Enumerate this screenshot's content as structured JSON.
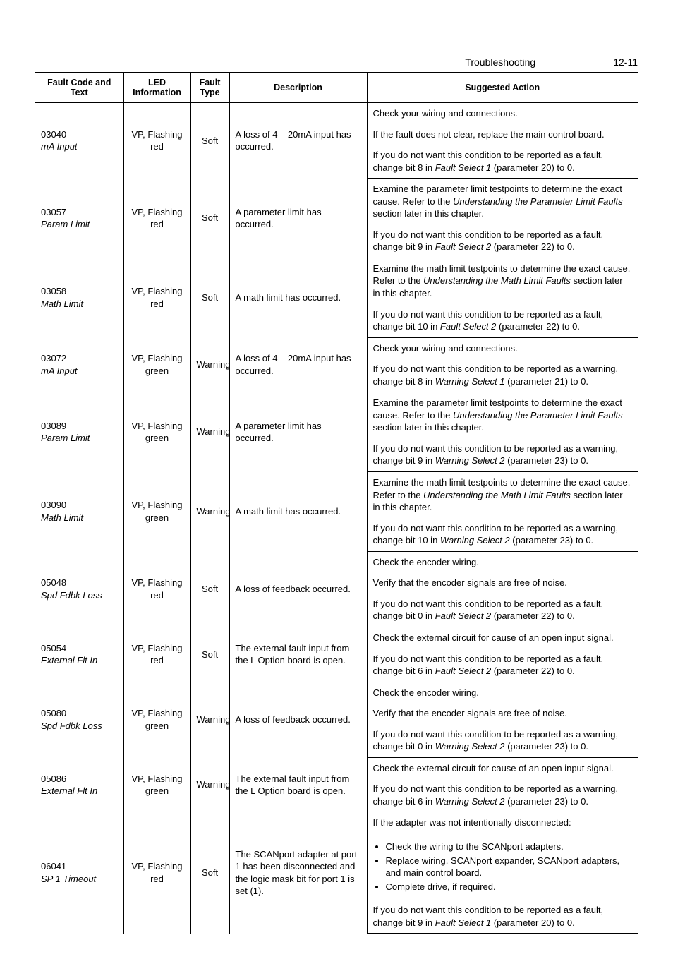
{
  "header": {
    "section": "Troubleshooting",
    "page": "12-11"
  },
  "columns": {
    "code": "Fault Code and Text",
    "led": "LED Information",
    "type": "Fault Type",
    "desc": "Description",
    "action": "Suggested Action"
  },
  "rows": [
    {
      "code": "03040",
      "text": "mA Input",
      "led": "VP, Flashing red",
      "type": "Soft",
      "desc": "A loss of 4 – 20mA input has occurred.",
      "actions": [
        {
          "plain": "Check your wiring and connections."
        },
        {
          "plain": "If the fault does not clear, replace the main control board."
        },
        {
          "pre": "If you do not want this condition to be reported as a fault, change bit 8 in ",
          "em": "Fault Select 1",
          "post": " (parameter 20) to 0."
        }
      ]
    },
    {
      "code": "03057",
      "text": "Param Limit",
      "led": "VP, Flashing red",
      "type": "Soft",
      "desc": "A parameter limit has occurred.",
      "actions": [
        {
          "pre": "Examine the parameter limit testpoints to determine the exact cause. Refer to the ",
          "em": "Understanding the Parameter Limit Faults",
          "post": " section later in this chapter."
        },
        {
          "pre": "If you do not want this condition to be reported as a fault, change bit 9 in ",
          "em": "Fault Select 2",
          "post": " (parameter 22) to 0."
        }
      ]
    },
    {
      "code": "03058",
      "text": "Math Limit",
      "led": "VP, Flashing red",
      "type": "Soft",
      "desc": "A math limit has occurred.",
      "actions": [
        {
          "pre": "Examine the math limit testpoints to determine the exact cause. Refer to the ",
          "em": "Understanding the Math Limit Faults",
          "post": " section later in this chapter."
        },
        {
          "pre": "If you do not want this condition to be reported as a fault, change bit 10 in ",
          "em": "Fault Select 2",
          "post": " (parameter 22) to 0."
        }
      ]
    },
    {
      "code": "03072",
      "text": "mA Input",
      "led": "VP, Flashing green",
      "type": "Warning",
      "desc": "A loss of 4 – 20mA input has occurred.",
      "actions": [
        {
          "plain": "Check your wiring and connections."
        },
        {
          "pre": "If you do not want this condition to be reported as a warning, change bit 8 in ",
          "em": "Warning Select 1",
          "post": " (parameter 21) to 0."
        }
      ]
    },
    {
      "code": "03089",
      "text": "Param Limit",
      "led": "VP, Flashing green",
      "type": "Warning",
      "desc": "A parameter limit has occurred.",
      "actions": [
        {
          "pre": "Examine the parameter limit testpoints to determine the exact cause. Refer to the ",
          "em": "Understanding the Parameter Limit Faults",
          "post": " section later in this chapter."
        },
        {
          "pre": "If you do not want this condition to be reported as a warning, change bit 9 in ",
          "em": "Warning Select 2",
          "post": " (parameter 23) to 0."
        }
      ]
    },
    {
      "code": "03090",
      "text": "Math Limit",
      "led": "VP, Flashing green",
      "type": "Warning",
      "desc": "A math limit has occurred.",
      "actions": [
        {
          "pre": "Examine the math limit testpoints to determine the exact cause. Refer to the ",
          "em": "Understanding the Math Limit Faults",
          "post": " section later in this chapter."
        },
        {
          "pre": "If you do not want this condition to be reported as a warning, change bit 10 in ",
          "em": "Warning Select 2",
          "post": " (parameter 23) to 0."
        }
      ]
    },
    {
      "code": "05048",
      "text": "Spd Fdbk Loss",
      "led": "VP, Flashing red",
      "type": "Soft",
      "desc": "A loss of feedback occurred.",
      "actions": [
        {
          "plain": "Check the encoder wiring."
        },
        {
          "plain": "Verify that the encoder signals are free of noise."
        },
        {
          "pre": "If you do not want this condition to be reported as a fault, change bit 0 in ",
          "em": "Fault Select 2",
          "post": " (parameter 22) to 0."
        }
      ]
    },
    {
      "code": "05054",
      "text": "External Flt In",
      "led": "VP, Flashing red",
      "type": "Soft",
      "desc": "The external fault input from the L Option board is open.",
      "actions": [
        {
          "plain": "Check the external circuit for cause of an open input signal."
        },
        {
          "pre": "If you do not want this condition to be reported as a fault, change bit 6 in ",
          "em": "Fault Select 2",
          "post": " (parameter 22) to 0."
        }
      ]
    },
    {
      "code": "05080",
      "text": "Spd Fdbk Loss",
      "led": "VP, Flashing green",
      "type": "Warning",
      "desc": "A loss of feedback occurred.",
      "actions": [
        {
          "plain": "Check the encoder wiring."
        },
        {
          "plain": "Verify that the encoder signals are free of noise."
        },
        {
          "pre": "If you do not want this condition to be reported as a warning, change bit 0 in ",
          "em": "Warning Select 2",
          "post": " (parameter 23) to 0."
        }
      ]
    },
    {
      "code": "05086",
      "text": "External Flt In",
      "led": "VP, Flashing green",
      "type": "Warning",
      "desc": "The external fault input from the L Option board is open.",
      "actions": [
        {
          "plain": "Check the external circuit for cause of an open input signal."
        },
        {
          "pre": "If you do not want this condition to be reported as a warning, change bit 6 in ",
          "em": "Warning Select 2",
          "post": " (parameter 23) to 0."
        }
      ]
    },
    {
      "code": "06041",
      "text": "SP 1 Timeout",
      "led": "VP, Flashing red",
      "type": "Soft",
      "desc": "The SCANport adapter at port 1 has been disconnected and the logic mask bit for port 1 is set (1).",
      "actions": [
        {
          "plain": "If the adapter was not intentionally disconnected:"
        },
        {
          "bullets": [
            "Check the wiring to the SCANport adapters.",
            "Replace wiring, SCANport expander, SCANport adapters, and main control board.",
            "Complete drive, if required."
          ]
        },
        {
          "pre": "If you do not want this condition to be reported as a fault, change bit 9 in ",
          "em": "Fault Select 1",
          "post": " (parameter 20) to 0."
        }
      ]
    }
  ]
}
